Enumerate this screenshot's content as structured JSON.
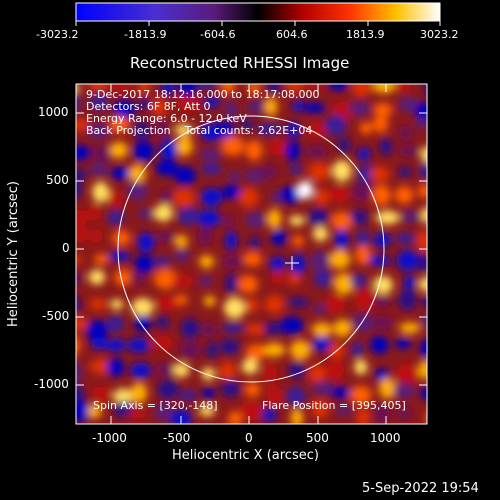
{
  "colorbar": {
    "tick_labels": [
      "-3023.2",
      "-1813.9",
      "-604.6",
      "604.6",
      "1813.9",
      "3023.2"
    ]
  },
  "title": "Reconstructed RHESSI Image",
  "info": {
    "line1": "9-Dec-2017 18:12:16.000 to 18:17:08.000",
    "line2": "Detectors: 6F 8F, Att 0",
    "line3": "Energy Range: 6.0 - 12.0 keV",
    "line4": "Back Projection    Total counts: 2.62E+04",
    "spin_axis": "Spin Axis = [320,-148]",
    "flare_position": "Flare Position = [395,405]"
  },
  "axes": {
    "xlabel": "Heliocentric X (arcsec)",
    "ylabel": "Heliocentric Y (arcsec)",
    "x_ticks": [
      "-1000",
      "-500",
      "0",
      "500",
      "1000"
    ],
    "y_ticks": [
      "1000",
      "500",
      "0",
      "-500",
      "-1000"
    ]
  },
  "footer": {
    "date": "5-Sep-2022 19:54"
  },
  "colors": {
    "background": "#000000",
    "text": "#ffffff",
    "cmap_low": "#0000ff",
    "cmap_mid": "#000000",
    "cmap_high": "#ffffff"
  }
}
